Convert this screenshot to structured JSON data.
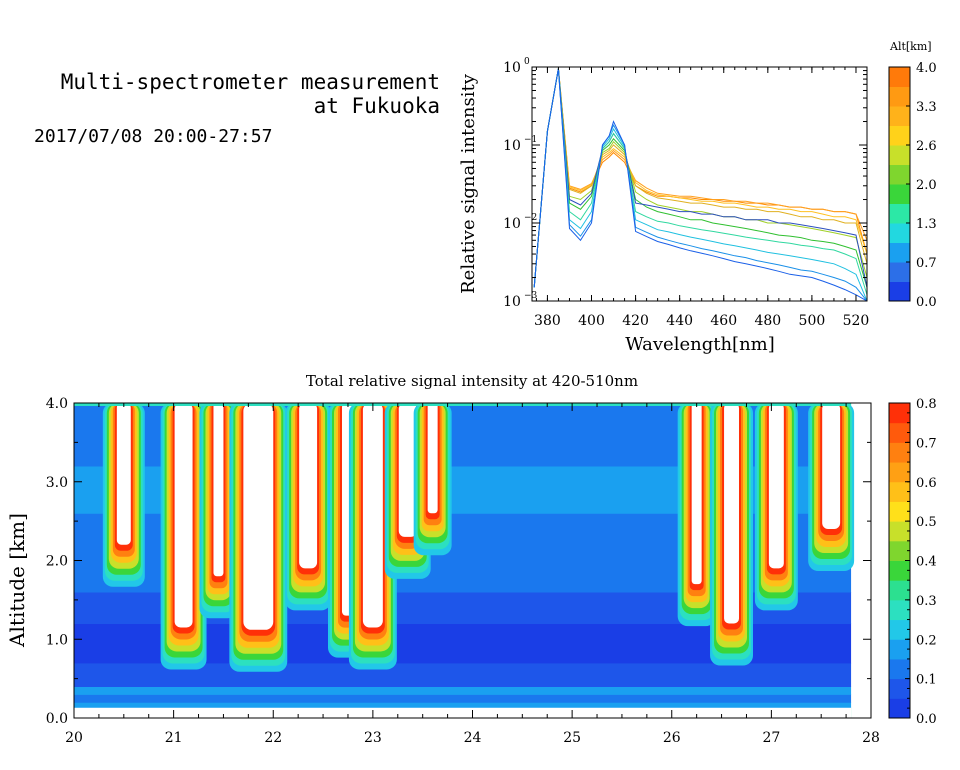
{
  "header": {
    "title_line1": "Multi-spectrometer measurement",
    "title_line2": "at Fukuoka",
    "date_range": "2017/07/08 20:00-27:57"
  },
  "chart_data": [
    {
      "type": "line",
      "xlabel": "Wavelength[nm]",
      "ylabel": "Relative signal intensity",
      "xlim": [
        373,
        525
      ],
      "ylim": [
        0.001,
        1
      ],
      "yscale": "log",
      "x_ticks": [
        380,
        400,
        420,
        440,
        460,
        480,
        500,
        520
      ],
      "y_tick_labels": [
        {
          "base": "10",
          "exp": "0",
          "value": 1
        },
        {
          "base": "10",
          "exp": "−1",
          "value": 0.1
        },
        {
          "base": "10",
          "exp": "−2",
          "value": 0.01
        },
        {
          "base": "10",
          "exp": "−3",
          "value": 0.001
        }
      ],
      "colorbar": {
        "title": "Alt[km]",
        "tick_labels": [
          "4.0",
          "3.3",
          "2.6",
          "2.0",
          "1.3",
          "0.7",
          "0.0"
        ],
        "colors": [
          "#1a3ee6",
          "#2c6fe8",
          "#1aa0f0",
          "#22d8e0",
          "#2ce8a6",
          "#3ad63a",
          "#7fd62e",
          "#c8e02a",
          "#ffd21a",
          "#ffb21a",
          "#ff9a12",
          "#ff7a0a"
        ]
      },
      "x": [
        374,
        380,
        385,
        390,
        395,
        400,
        405,
        408,
        410,
        415,
        420,
        425,
        430,
        435,
        440,
        445,
        450,
        455,
        460,
        465,
        470,
        475,
        480,
        485,
        490,
        495,
        500,
        505,
        510,
        515,
        520,
        525
      ],
      "series": [
        {
          "color": "#ff8a00",
          "values": [
            0.0015,
            0.15,
            0.95,
            0.028,
            0.025,
            0.03,
            0.06,
            0.07,
            0.08,
            0.06,
            0.03,
            0.025,
            0.022,
            0.022,
            0.021,
            0.021,
            0.02,
            0.02,
            0.019,
            0.019,
            0.018,
            0.018,
            0.017,
            0.017,
            0.016,
            0.016,
            0.015,
            0.015,
            0.014,
            0.014,
            0.013,
            0.004
          ]
        },
        {
          "color": "#ffa020",
          "values": [
            0.0015,
            0.15,
            0.95,
            0.03,
            0.027,
            0.032,
            0.065,
            0.075,
            0.085,
            0.065,
            0.035,
            0.028,
            0.024,
            0.023,
            0.022,
            0.022,
            0.021,
            0.02,
            0.02,
            0.019,
            0.019,
            0.018,
            0.018,
            0.017,
            0.016,
            0.016,
            0.015,
            0.015,
            0.014,
            0.014,
            0.013,
            0.006
          ]
        },
        {
          "color": "#ffc020",
          "values": [
            0.0015,
            0.15,
            0.95,
            0.029,
            0.026,
            0.031,
            0.07,
            0.08,
            0.09,
            0.07,
            0.033,
            0.026,
            0.023,
            0.022,
            0.021,
            0.02,
            0.019,
            0.019,
            0.018,
            0.018,
            0.017,
            0.016,
            0.016,
            0.015,
            0.015,
            0.014,
            0.014,
            0.013,
            0.012,
            0.012,
            0.011,
            0.004
          ]
        },
        {
          "color": "#e0b020",
          "values": [
            0.0015,
            0.15,
            0.95,
            0.027,
            0.024,
            0.03,
            0.075,
            0.085,
            0.1,
            0.075,
            0.03,
            0.024,
            0.021,
            0.02,
            0.019,
            0.018,
            0.018,
            0.017,
            0.016,
            0.016,
            0.015,
            0.015,
            0.014,
            0.014,
            0.013,
            0.012,
            0.012,
            0.011,
            0.011,
            0.01,
            0.01,
            0.003
          ]
        },
        {
          "color": "#a0d028",
          "values": [
            0.0015,
            0.15,
            0.95,
            0.022,
            0.02,
            0.026,
            0.08,
            0.09,
            0.11,
            0.08,
            0.025,
            0.02,
            0.017,
            0.016,
            0.015,
            0.014,
            0.014,
            0.013,
            0.012,
            0.012,
            0.011,
            0.011,
            0.01,
            0.01,
            0.0095,
            0.009,
            0.0085,
            0.008,
            0.0075,
            0.007,
            0.0065,
            0.002
          ]
        },
        {
          "color": "#30c030",
          "values": [
            0.0015,
            0.15,
            0.95,
            0.018,
            0.015,
            0.022,
            0.085,
            0.1,
            0.12,
            0.085,
            0.02,
            0.016,
            0.014,
            0.013,
            0.012,
            0.011,
            0.011,
            0.01,
            0.0095,
            0.009,
            0.0085,
            0.008,
            0.0075,
            0.007,
            0.0068,
            0.0065,
            0.006,
            0.0058,
            0.0055,
            0.005,
            0.0045,
            0.0015
          ]
        },
        {
          "color": "#2c4fc0",
          "values": [
            0.0015,
            0.15,
            0.95,
            0.02,
            0.017,
            0.024,
            0.09,
            0.11,
            0.14,
            0.09,
            0.018,
            0.017,
            0.016,
            0.015,
            0.014,
            0.014,
            0.013,
            0.013,
            0.012,
            0.012,
            0.011,
            0.011,
            0.011,
            0.01,
            0.01,
            0.0095,
            0.009,
            0.0085,
            0.008,
            0.0075,
            0.007,
            0.0015
          ]
        },
        {
          "color": "#30d8a0",
          "values": [
            0.0015,
            0.15,
            0.95,
            0.014,
            0.011,
            0.018,
            0.09,
            0.11,
            0.14,
            0.09,
            0.014,
            0.012,
            0.0105,
            0.01,
            0.0092,
            0.0087,
            0.0082,
            0.0078,
            0.0074,
            0.007,
            0.0066,
            0.0063,
            0.006,
            0.0057,
            0.0055,
            0.0052,
            0.005,
            0.0047,
            0.0045,
            0.004,
            0.0035,
            0.0012
          ]
        },
        {
          "color": "#20c0e0",
          "values": [
            0.0015,
            0.15,
            0.95,
            0.011,
            0.0085,
            0.014,
            0.095,
            0.12,
            0.16,
            0.095,
            0.011,
            0.0095,
            0.0082,
            0.0077,
            0.0071,
            0.0066,
            0.0062,
            0.0058,
            0.0054,
            0.0051,
            0.0048,
            0.0045,
            0.0042,
            0.004,
            0.0038,
            0.0036,
            0.0034,
            0.0032,
            0.003,
            0.0026,
            0.0022,
            0.001
          ]
        },
        {
          "color": "#1a90e8",
          "values": [
            0.0015,
            0.15,
            0.95,
            0.0095,
            0.0068,
            0.011,
            0.1,
            0.13,
            0.18,
            0.1,
            0.0088,
            0.0076,
            0.0066,
            0.006,
            0.0055,
            0.0051,
            0.0047,
            0.0044,
            0.0041,
            0.0038,
            0.0036,
            0.0033,
            0.0031,
            0.0029,
            0.0027,
            0.0025,
            0.0024,
            0.0022,
            0.002,
            0.0018,
            0.0015,
            0.001
          ]
        },
        {
          "color": "#1a60e8",
          "values": [
            0.0015,
            0.15,
            0.95,
            0.0085,
            0.006,
            0.01,
            0.1,
            0.13,
            0.2,
            0.1,
            0.0078,
            0.0067,
            0.0058,
            0.0053,
            0.0048,
            0.0044,
            0.0041,
            0.0038,
            0.0035,
            0.0032,
            0.003,
            0.0028,
            0.0026,
            0.0024,
            0.0022,
            0.0021,
            0.002,
            0.0018,
            0.0016,
            0.0014,
            0.0012,
            0.001
          ]
        }
      ]
    },
    {
      "type": "heatmap",
      "title": "Total relative signal intensity at 420-510nm",
      "xlabel": "",
      "ylabel": "Altitude [km]",
      "xlim": [
        20,
        28
      ],
      "ylim": [
        0,
        4
      ],
      "x_ticks": [
        20,
        21,
        22,
        23,
        24,
        25,
        26,
        27,
        28
      ],
      "y_tick_labels": [
        "4.0",
        "3.0",
        "2.0",
        "1.0",
        "0.0"
      ],
      "y_ticks": [
        4.0,
        3.0,
        2.0,
        1.0,
        0.0
      ],
      "data_x_range": [
        20,
        27.8
      ],
      "colorbar": {
        "tick_labels": [
          "0.8",
          "0.7",
          "0.6",
          "0.5",
          "0.4",
          "0.3",
          "0.2",
          "0.1",
          "0.0"
        ],
        "saturated_color": "#ffffff",
        "colors": [
          "#1a3ee6",
          "#1e56ea",
          "#1a78ee",
          "#1aa0f0",
          "#22c8e8",
          "#2ce0c0",
          "#2ce090",
          "#3ad63a",
          "#7fd62e",
          "#c8e02a",
          "#ffe01a",
          "#ffc018",
          "#ffa014",
          "#ff8010",
          "#ff5a0c",
          "#ff3008"
        ]
      },
      "clouds": [
        {
          "x": 20.5,
          "base": 2.2,
          "width": 0.14
        },
        {
          "x": 21.1,
          "base": 1.15,
          "width": 0.18
        },
        {
          "x": 21.45,
          "base": 1.8,
          "width": 0.1
        },
        {
          "x": 21.85,
          "base": 1.12,
          "width": 0.3
        },
        {
          "x": 22.35,
          "base": 1.9,
          "width": 0.18
        },
        {
          "x": 22.75,
          "base": 1.3,
          "width": 0.12
        },
        {
          "x": 23.0,
          "base": 1.15,
          "width": 0.2
        },
        {
          "x": 23.35,
          "base": 2.3,
          "width": 0.18
        },
        {
          "x": 23.6,
          "base": 2.6,
          "width": 0.1
        },
        {
          "x": 26.25,
          "base": 1.7,
          "width": 0.1
        },
        {
          "x": 26.6,
          "base": 1.2,
          "width": 0.15
        },
        {
          "x": 27.05,
          "base": 1.9,
          "width": 0.15
        },
        {
          "x": 27.6,
          "base": 2.4,
          "width": 0.18
        }
      ]
    }
  ]
}
